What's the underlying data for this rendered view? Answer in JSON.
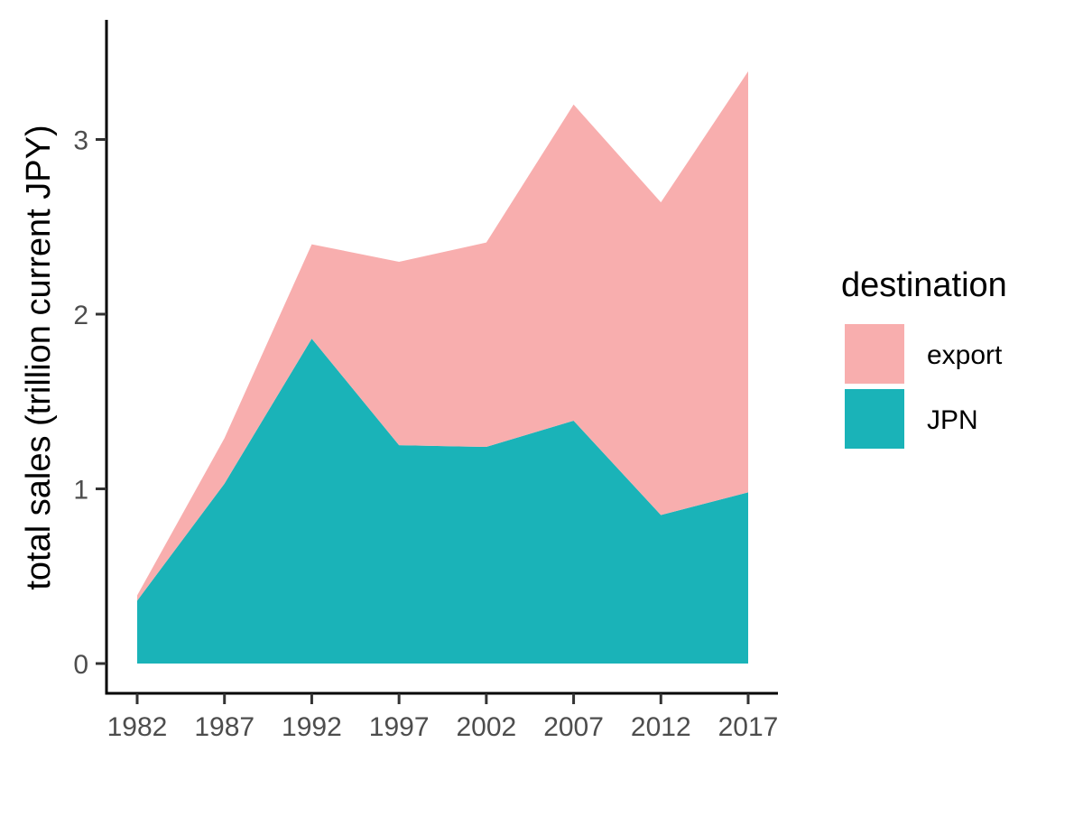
{
  "chart_data": {
    "type": "area",
    "stacked": true,
    "x": [
      1982,
      1987,
      1992,
      1997,
      2002,
      2007,
      2012,
      2017
    ],
    "x_tick_labels": [
      "1982",
      "1987",
      "1992",
      "1997",
      "2002",
      "2007",
      "2012",
      "2017"
    ],
    "series": [
      {
        "name": "JPN",
        "color": "#1ab3b8",
        "values": [
          0.36,
          1.03,
          1.86,
          1.25,
          1.24,
          1.39,
          0.85,
          0.98
        ]
      },
      {
        "name": "export",
        "color": "#f8aeae",
        "values": [
          0.03,
          0.26,
          0.54,
          1.05,
          1.17,
          1.81,
          1.79,
          2.41
        ]
      }
    ],
    "totals": [
      0.39,
      1.29,
      2.4,
      2.3,
      2.41,
      3.2,
      2.64,
      3.39
    ],
    "ylabel": "total sales (trillion current JPY)",
    "xlabel": "",
    "y_ticks": [
      0,
      1,
      2,
      3
    ],
    "y_tick_labels": [
      "0",
      "1",
      "2",
      "3"
    ],
    "xlim": [
      1982,
      2017
    ],
    "ylim": [
      0,
      3.39
    ],
    "grid": false,
    "legend": {
      "title": "destination",
      "position": "right",
      "entries": [
        {
          "label": "export",
          "color": "#f8aeae"
        },
        {
          "label": "JPN",
          "color": "#1ab3b8"
        }
      ]
    }
  }
}
